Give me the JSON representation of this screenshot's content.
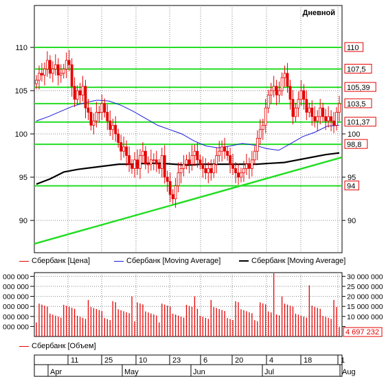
{
  "window": {
    "period_label": "Дневной"
  },
  "colors": {
    "candle": "#e60000",
    "ma_fast": "#1a1adc",
    "ma_slow": "#000000",
    "levels": "#22dd22",
    "grid": "#808080",
    "volume": "#e60000"
  },
  "price_panel": {
    "y_ticks_left": [
      "110",
      "105",
      "100",
      "95",
      "90"
    ],
    "y_ticks_right": [
      "100",
      "95",
      "90"
    ],
    "level_labels": [
      "110",
      "107,5",
      "105,39",
      "103,5",
      "101,37",
      "98,8",
      "94"
    ],
    "legend": [
      {
        "label": "Сбербанк [Цена]",
        "color": "#e60000"
      },
      {
        "label": "Сбербанк [Moving Average]",
        "color": "#1a1adc"
      },
      {
        "label": "Сбербанк [Moving Average]",
        "color": "#000000"
      }
    ]
  },
  "volume_panel": {
    "y_ticks_left": [
      "000 000",
      "000 000",
      "000 000",
      "000 000",
      "000 000",
      "000 000"
    ],
    "y_ticks_right": [
      "30 000 000",
      "25 000 000",
      "20 000 000",
      "15 000 000",
      "10 000 000",
      "5 000 000"
    ],
    "last_volume_label": "4 697 232",
    "legend": [
      {
        "label": "Сбербанк [Объем]",
        "color": "#e60000"
      }
    ]
  },
  "time_axis": {
    "day_labels": [
      "11",
      "25",
      "10",
      "23",
      "6",
      "20",
      "4",
      "18",
      "1"
    ],
    "month_labels": [
      "Apr",
      "May",
      "Jun",
      "Jul",
      "Aug"
    ]
  },
  "chart_data": [
    {
      "type": "candlestick",
      "title": "Дневной",
      "ylim": [
        87,
        115
      ],
      "levels": [
        110,
        107.5,
        105.39,
        103.5,
        101.37,
        98.8,
        94
      ],
      "trendline": {
        "from": {
          "date": "Mar 30",
          "value": 87.3
        },
        "to": {
          "date": "Aug 1",
          "value": 97.3
        }
      },
      "series": [
        {
          "name": "Сбербанк [Цена]",
          "close_approx": [
            106.2,
            107,
            106.8,
            107.5,
            108.5,
            107,
            107.5,
            108,
            106.8,
            107,
            107.5,
            108.5,
            108,
            105.5,
            104,
            105,
            104.5,
            105.5,
            103,
            102.5,
            101,
            101.5,
            102.5,
            102.5,
            103.5,
            102.5,
            101.5,
            100.5,
            101,
            100,
            99,
            98,
            98.5,
            97.5,
            96.5,
            96,
            97,
            96,
            97.5,
            98,
            96.5,
            96.5,
            97,
            97,
            96.5,
            96,
            97.5,
            95,
            94.5,
            93,
            92.5,
            94,
            95.5,
            96,
            96.5,
            97,
            96.5,
            97.5,
            98,
            97,
            96.5,
            96,
            95.5,
            96,
            95.5,
            96.5,
            97.5,
            98,
            98.5,
            98,
            97.5,
            96.5,
            96,
            95.5,
            95,
            95.5,
            96,
            96.5,
            96,
            97,
            98,
            99.5,
            100.5,
            101,
            103,
            104.5,
            105,
            105.5,
            104.5,
            105,
            106.5,
            107,
            105.5,
            104,
            102,
            103,
            104,
            105,
            104,
            102.5,
            103,
            102,
            101.5,
            102,
            103,
            102,
            101.5,
            102,
            101.5,
            101,
            102.5,
            103.5
          ]
        },
        {
          "name": "Сбербанк [Moving Average]",
          "values_approx": [
            101.5,
            102,
            102.6,
            103.2,
            103.6,
            103.9,
            103.8,
            103.3,
            102.6,
            101.8,
            101,
            100.5,
            100,
            99.2,
            98.6,
            98.4,
            98.6,
            98.9,
            98.7,
            98.3,
            98.1,
            98.9,
            99.7,
            100.2,
            100.9,
            101
          ]
        },
        {
          "name": "Сбербанк [Moving Average]",
          "values_approx": [
            94.2,
            94.8,
            95.6,
            95.9,
            96.1,
            96.3,
            96.5,
            96.5,
            96.6,
            96.6,
            96.5,
            96.4,
            96.5,
            96.5,
            96.5,
            96.5,
            96.5,
            96.6,
            96.7,
            97,
            97.3,
            97.6,
            97.8
          ]
        }
      ]
    },
    {
      "type": "bar",
      "title": "",
      "ylim": [
        0,
        33000000
      ],
      "series": [
        {
          "name": "Сбербанк [Объем]",
          "last_value": 4697232
        }
      ]
    }
  ]
}
